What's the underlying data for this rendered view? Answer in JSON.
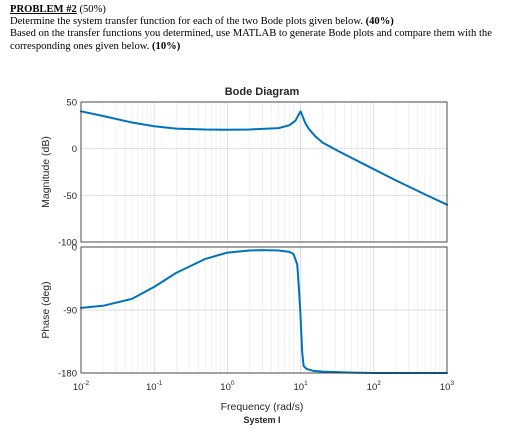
{
  "problem": {
    "heading": "PROBLEM #2",
    "heading_suffix": " (50%)",
    "line1": "Determine the system transfer function for each of the two Bode plots given below. ",
    "line1_bold": "(40%)",
    "line2": "Based on the transfer functions you determined, use MATLAB to generate Bode plots and compare them with the corresponding ones given below. ",
    "line2_bold": "(10%)"
  },
  "figure": {
    "caption": "System I",
    "line_color": "#0072bd"
  },
  "chart_data": {
    "type": "line",
    "title": "Bode Diagram",
    "xlabel": "Frequency  (rad/s)",
    "xscale": "log",
    "xlim": [
      0.01,
      1000
    ],
    "x_ticks": [
      {
        "base": "10",
        "exp": "-2",
        "value": 0.01
      },
      {
        "base": "10",
        "exp": "-1",
        "value": 0.1
      },
      {
        "base": "10",
        "exp": "0",
        "value": 1
      },
      {
        "base": "10",
        "exp": "1",
        "value": 10
      },
      {
        "base": "10",
        "exp": "2",
        "value": 100
      },
      {
        "base": "10",
        "exp": "3",
        "value": 1000
      }
    ],
    "grid": true,
    "panels": [
      {
        "name": "magnitude",
        "ylabel": "Magnitude (dB)",
        "ylim": [
          -100,
          50
        ],
        "y_ticks": [
          50,
          0,
          -50,
          -100
        ],
        "y_tick_labels": [
          "50",
          "0",
          "-50",
          "-100"
        ],
        "x": [
          0.01,
          0.02,
          0.05,
          0.1,
          0.2,
          0.5,
          1,
          2,
          5,
          7,
          8.5,
          9.5,
          10,
          10.5,
          11.5,
          13,
          16,
          20,
          30,
          50,
          100,
          200,
          500,
          1000
        ],
        "y": [
          40,
          35,
          28,
          24,
          21.5,
          20.5,
          20.3,
          20.5,
          22,
          25,
          30,
          37,
          40,
          36,
          28,
          21,
          13,
          6.5,
          -1,
          -10,
          -22,
          -34,
          -49,
          -60
        ]
      },
      {
        "name": "phase",
        "ylabel": "Phase (deg)",
        "ylim": [
          -180,
          0
        ],
        "y_ticks": [
          0,
          -90,
          -180
        ],
        "y_tick_labels": [
          "0",
          "-90",
          "-180"
        ],
        "x": [
          0.01,
          0.02,
          0.05,
          0.1,
          0.2,
          0.5,
          1,
          2,
          3,
          5,
          7,
          8,
          9,
          9.5,
          10,
          10.5,
          11,
          12,
          15,
          20,
          50,
          100,
          300,
          1000
        ],
        "y": [
          -87,
          -84,
          -74,
          -57,
          -37,
          -17,
          -8,
          -5,
          -4.5,
          -5,
          -7,
          -10,
          -25,
          -60,
          -100,
          -150,
          -170,
          -174,
          -177,
          -178,
          -179.5,
          -180,
          -180,
          -180
        ]
      }
    ]
  }
}
